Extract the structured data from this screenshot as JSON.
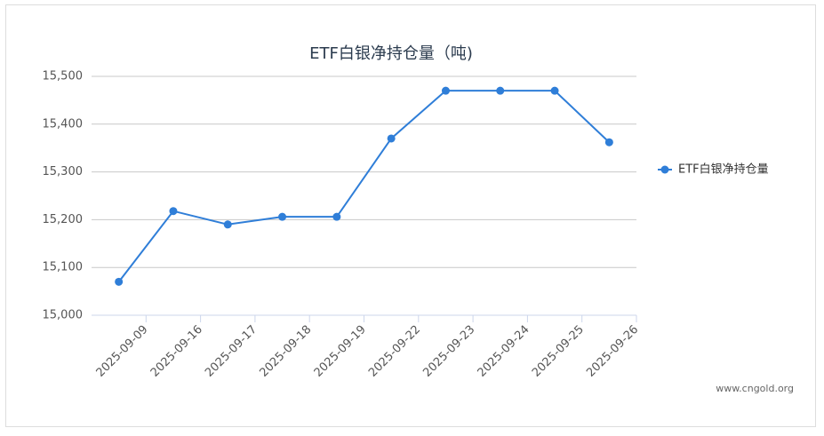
{
  "chart_data": {
    "type": "line",
    "title": "ETF白银净持仓量（吨)",
    "categories": [
      "2025-09-09",
      "2025-09-16",
      "2025-09-17",
      "2025-09-18",
      "2025-09-19",
      "2025-09-22",
      "2025-09-23",
      "2025-09-24",
      "2025-09-25",
      "2025-09-26"
    ],
    "series": [
      {
        "name": "ETF白银净持仓量",
        "color": "#2f7ed8",
        "values": [
          15070,
          15218,
          15190,
          15206,
          15206,
          15370,
          15470,
          15470,
          15470,
          15362
        ]
      }
    ],
    "ylim": [
      15000,
      15500
    ],
    "yticks": [
      {
        "value": 15000,
        "label": "15,000"
      },
      {
        "value": 15100,
        "label": "15,100"
      },
      {
        "value": 15200,
        "label": "15,200"
      },
      {
        "value": 15300,
        "label": "15,300"
      },
      {
        "value": 15400,
        "label": "15,400"
      },
      {
        "value": 15500,
        "label": "15,500"
      }
    ],
    "grid": true,
    "legend": "right",
    "source": "www.cngold.org"
  }
}
